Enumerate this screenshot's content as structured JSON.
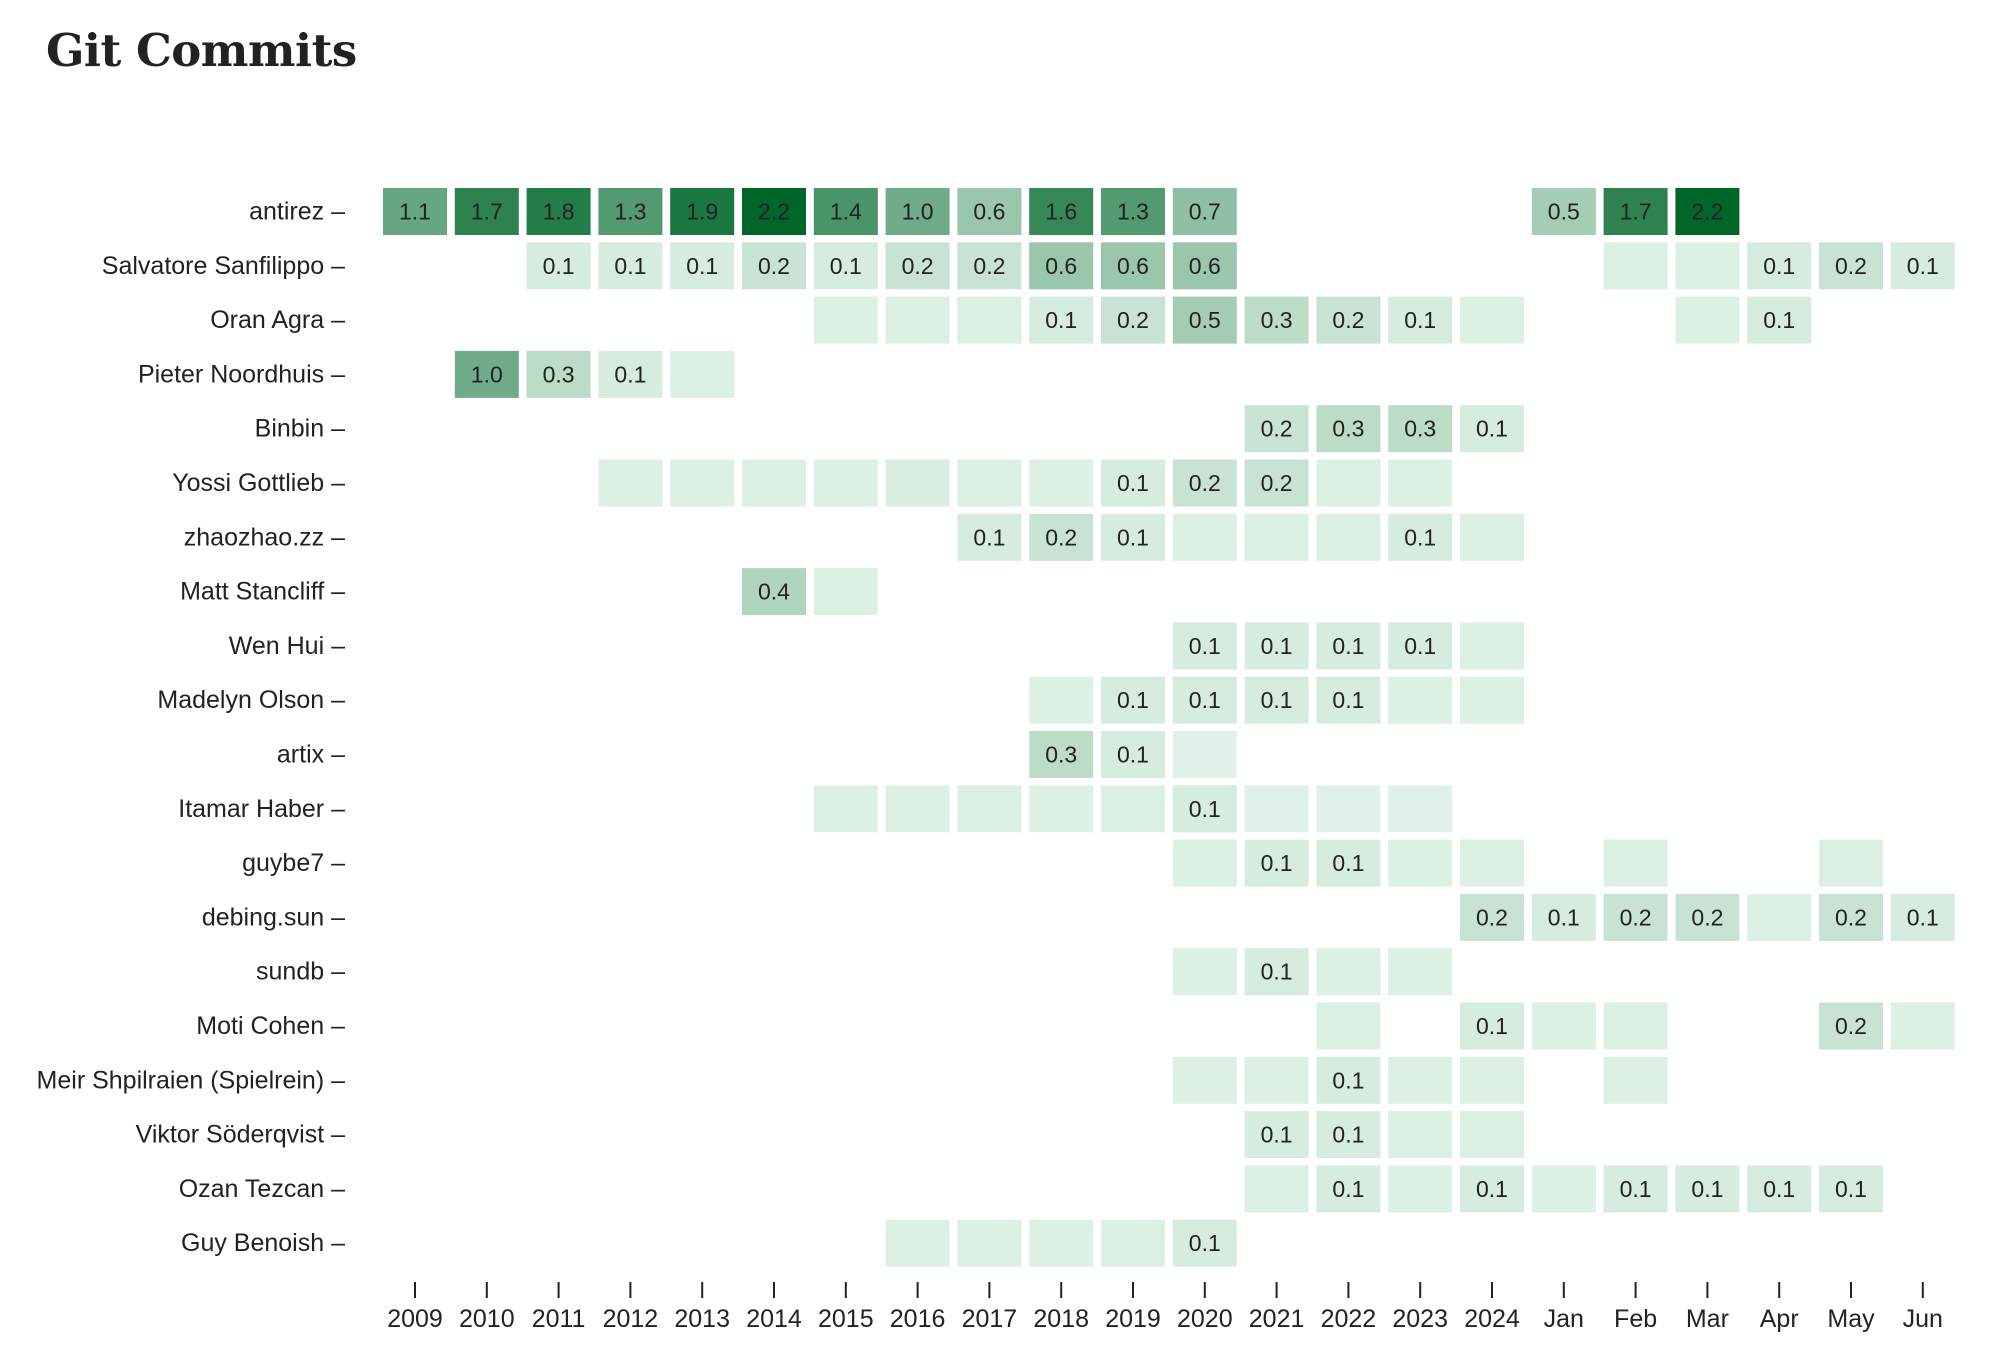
{
  "title": "Git Commits",
  "chart_data": {
    "type": "heatmap",
    "title": "Git Commits",
    "xlabel": "",
    "ylabel": "",
    "categories": [
      "2009",
      "2010",
      "2011",
      "2012",
      "2013",
      "2014",
      "2015",
      "2016",
      "2017",
      "2018",
      "2019",
      "2020",
      "2021",
      "2022",
      "2023",
      "2024",
      "Jan",
      "Feb",
      "Mar",
      "Apr",
      "May",
      "Jun"
    ],
    "rows": [
      {
        "name": "antirez",
        "values": [
          1.1,
          1.7,
          1.8,
          1.3,
          1.9,
          2.2,
          1.4,
          1.0,
          0.6,
          1.6,
          1.3,
          0.7,
          null,
          null,
          null,
          null,
          0.5,
          1.7,
          2.2,
          null,
          null,
          null
        ]
      },
      {
        "name": "Salvatore Sanfilippo",
        "values": [
          null,
          null,
          0.1,
          0.1,
          0.1,
          0.2,
          0.1,
          0.2,
          0.2,
          0.6,
          0.6,
          0.6,
          null,
          null,
          null,
          null,
          null,
          0.05,
          0.05,
          0.1,
          0.2,
          0.1
        ]
      },
      {
        "name": "Oran Agra",
        "values": [
          null,
          null,
          null,
          null,
          null,
          null,
          0.05,
          0.05,
          0.05,
          0.1,
          0.2,
          0.5,
          0.3,
          0.2,
          0.1,
          0.05,
          null,
          null,
          0.05,
          0.1,
          null,
          null
        ]
      },
      {
        "name": "Pieter Noordhuis",
        "values": [
          null,
          1.0,
          0.3,
          0.1,
          0.05,
          null,
          null,
          null,
          null,
          null,
          null,
          null,
          null,
          null,
          null,
          null,
          null,
          null,
          null,
          null,
          null,
          null
        ]
      },
      {
        "name": "Binbin",
        "values": [
          null,
          null,
          null,
          null,
          null,
          null,
          null,
          null,
          null,
          null,
          null,
          null,
          0.2,
          0.3,
          0.3,
          0.1,
          null,
          null,
          null,
          null,
          null,
          null
        ]
      },
      {
        "name": "Yossi Gottlieb",
        "values": [
          null,
          null,
          null,
          0.05,
          0.05,
          0.05,
          0.05,
          0.07,
          0.05,
          0.05,
          0.1,
          0.2,
          0.2,
          0.05,
          0.05,
          null,
          null,
          null,
          null,
          null,
          null,
          null
        ]
      },
      {
        "name": "zhaozhao.zz",
        "values": [
          null,
          null,
          null,
          null,
          null,
          null,
          null,
          null,
          0.1,
          0.2,
          0.1,
          0.05,
          0.05,
          0.05,
          0.1,
          0.05,
          null,
          null,
          null,
          null,
          null,
          null
        ]
      },
      {
        "name": "Matt Stancliff",
        "values": [
          null,
          null,
          null,
          null,
          null,
          0.4,
          0.05,
          null,
          null,
          null,
          null,
          null,
          null,
          null,
          null,
          null,
          null,
          null,
          null,
          null,
          null,
          null
        ]
      },
      {
        "name": "Wen Hui",
        "values": [
          null,
          null,
          null,
          null,
          null,
          null,
          null,
          null,
          null,
          null,
          null,
          0.1,
          0.1,
          0.1,
          0.1,
          0.05,
          null,
          null,
          null,
          null,
          null,
          null
        ]
      },
      {
        "name": "Madelyn Olson",
        "values": [
          null,
          null,
          null,
          null,
          null,
          null,
          null,
          null,
          null,
          0.05,
          0.1,
          0.1,
          0.1,
          0.1,
          0.05,
          0.05,
          null,
          null,
          null,
          null,
          null,
          null
        ]
      },
      {
        "name": "artix",
        "values": [
          null,
          null,
          null,
          null,
          null,
          null,
          null,
          null,
          null,
          0.3,
          0.1,
          0.03,
          null,
          null,
          null,
          null,
          null,
          null,
          null,
          null,
          null,
          null
        ]
      },
      {
        "name": "Itamar Haber",
        "values": [
          null,
          null,
          null,
          null,
          null,
          null,
          0.05,
          0.05,
          0.06,
          0.05,
          0.05,
          0.1,
          0.03,
          0.03,
          0.03,
          null,
          null,
          null,
          null,
          null,
          null,
          null
        ]
      },
      {
        "name": "guybe7",
        "values": [
          null,
          null,
          null,
          null,
          null,
          null,
          null,
          null,
          null,
          null,
          null,
          0.05,
          0.1,
          0.1,
          0.05,
          0.05,
          null,
          0.05,
          null,
          null,
          0.05,
          null
        ]
      },
      {
        "name": "debing.sun",
        "values": [
          null,
          null,
          null,
          null,
          null,
          null,
          null,
          null,
          null,
          null,
          null,
          null,
          null,
          null,
          null,
          0.2,
          0.1,
          0.2,
          0.2,
          0.05,
          0.2,
          0.1
        ]
      },
      {
        "name": "sundb",
        "values": [
          null,
          null,
          null,
          null,
          null,
          null,
          null,
          null,
          null,
          null,
          null,
          0.05,
          0.1,
          0.05,
          0.05,
          null,
          null,
          null,
          null,
          null,
          null,
          null
        ]
      },
      {
        "name": "Moti Cohen",
        "values": [
          null,
          null,
          null,
          null,
          null,
          null,
          null,
          null,
          null,
          null,
          null,
          null,
          null,
          0.05,
          null,
          0.1,
          0.05,
          0.05,
          null,
          null,
          0.2,
          0.05
        ]
      },
      {
        "name": "Meir Shpilraien (Spielrein)",
        "values": [
          null,
          null,
          null,
          null,
          null,
          null,
          null,
          null,
          null,
          null,
          null,
          0.05,
          0.05,
          0.1,
          0.05,
          0.05,
          null,
          0.05,
          null,
          null,
          null,
          null
        ]
      },
      {
        "name": "Viktor Söderqvist",
        "values": [
          null,
          null,
          null,
          null,
          null,
          null,
          null,
          null,
          null,
          null,
          null,
          null,
          0.1,
          0.1,
          0.05,
          0.05,
          null,
          null,
          null,
          null,
          null,
          null
        ]
      },
      {
        "name": "Ozan Tezcan",
        "values": [
          null,
          null,
          null,
          null,
          null,
          null,
          null,
          null,
          null,
          null,
          null,
          null,
          0.05,
          0.1,
          0.05,
          0.1,
          0.05,
          0.1,
          0.1,
          0.1,
          0.1,
          null
        ]
      },
      {
        "name": "Guy Benoish",
        "values": [
          null,
          null,
          null,
          null,
          null,
          null,
          null,
          0.05,
          0.05,
          0.05,
          0.05,
          0.1,
          null,
          null,
          null,
          null,
          null,
          null,
          null,
          null,
          null,
          null
        ]
      }
    ],
    "color_min": "#e6f6ec",
    "color_max": "#00662a",
    "value_range": [
      0,
      2.2
    ],
    "grid": false,
    "legend": "none"
  }
}
